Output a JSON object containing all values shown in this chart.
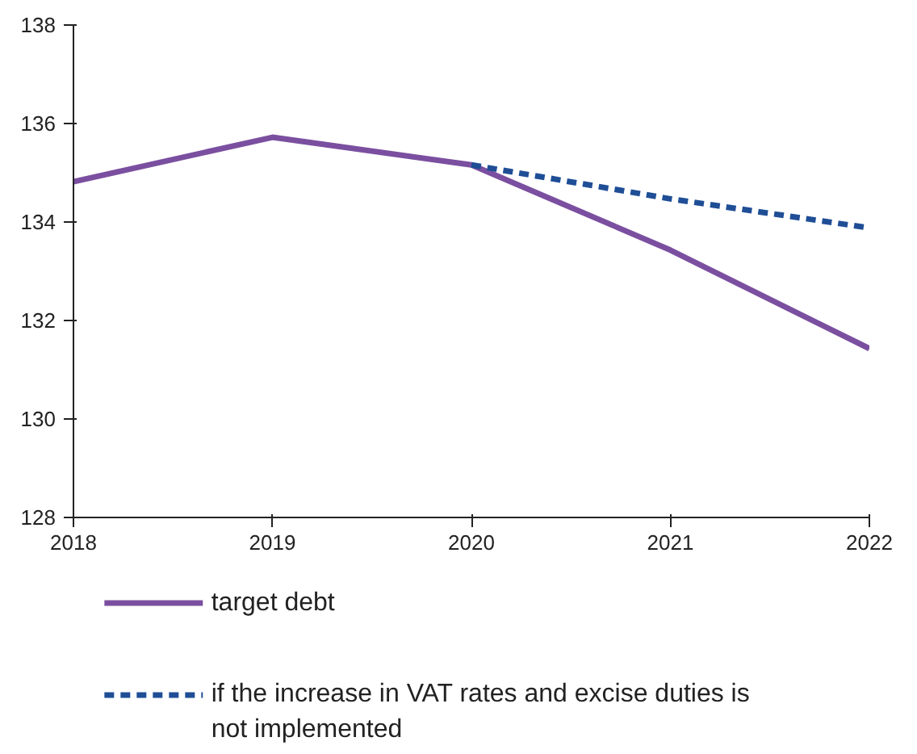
{
  "chart_data": {
    "type": "line",
    "x": [
      2018,
      2019,
      2020,
      2021,
      2022
    ],
    "series": [
      {
        "name": "target debt",
        "color": "#7b4fa0",
        "values": [
          134.82,
          135.72,
          135.16,
          133.43,
          131.43
        ],
        "line_style": "solid"
      },
      {
        "name": "if the increase in VAT rates and excise duties is not implemented",
        "color": "#1f4e96",
        "values": [
          null,
          null,
          135.16,
          134.47,
          133.88
        ],
        "line_style": "dashed"
      }
    ],
    "xlim": [
      2018,
      2022
    ],
    "xticks": [
      2018,
      2019,
      2020,
      2021,
      2022
    ],
    "ylim": [
      128,
      138
    ],
    "yticks": [
      128,
      130,
      132,
      134,
      136,
      138
    ],
    "grid": false,
    "legend": "bottom",
    "marker": "none"
  }
}
